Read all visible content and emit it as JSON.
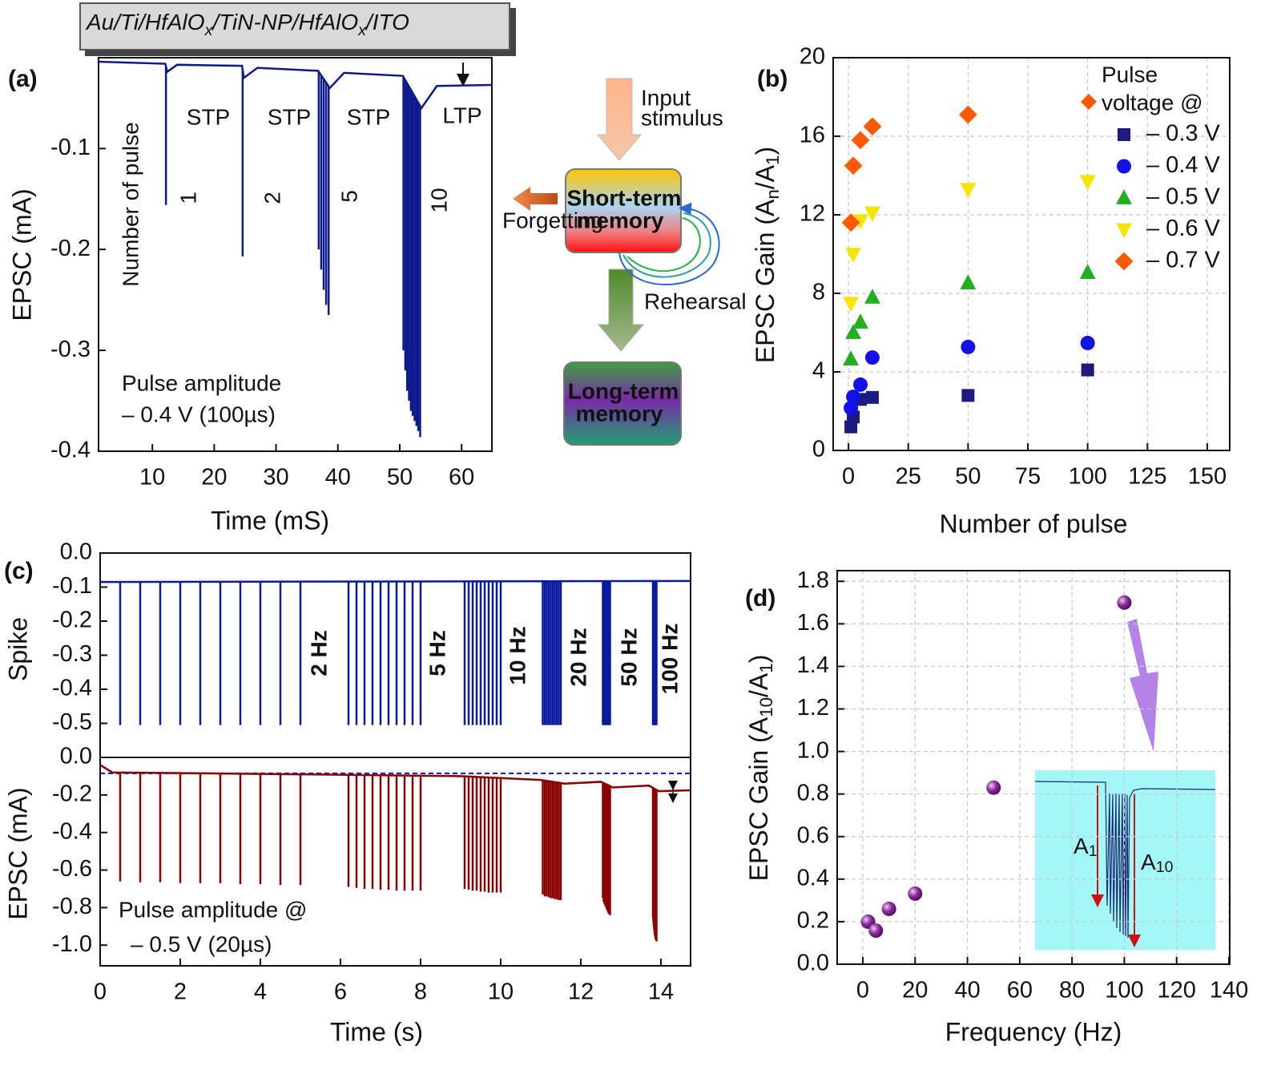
{
  "header": {
    "parts": [
      {
        "text": "Au/Ti/HfAlO"
      },
      {
        "text": "x",
        "sub": true
      },
      {
        "text": "/TiN-NP/HfAlO"
      },
      {
        "text": "x",
        "sub": true
      },
      {
        "text": "/ITO"
      }
    ]
  },
  "diagram": {
    "input": [
      "Input",
      "stimulus"
    ],
    "stm": [
      "Short-term",
      "memory"
    ],
    "ltm": [
      "Long-term",
      "memory"
    ],
    "forgetting": "Forgetting",
    "rehearsal": "Rehearsal"
  },
  "chart_data": [
    {
      "type": "spike_train",
      "panel": "(a)",
      "xlabel": "Time (mS)",
      "ylabel": "EPSC (mA)",
      "color": "#0d1a8c",
      "xlim": [
        1.3,
        64.9
      ],
      "ylim": [
        -0.4,
        -0.01
      ],
      "xticks": [
        10,
        20,
        30,
        40,
        50,
        60
      ],
      "yticks": [
        -0.1,
        -0.2,
        -0.3,
        -0.4
      ],
      "grid": false,
      "x": [
        12.2,
        24.6,
        36.9,
        37.3,
        37.7,
        38.1,
        38.5,
        50.6,
        50.9,
        51.2,
        51.5,
        51.8,
        52.1,
        52.4,
        52.7,
        53.0,
        53.3
      ],
      "values": [
        -0.156,
        -0.207,
        -0.2,
        -0.22,
        -0.24,
        -0.255,
        -0.265,
        -0.3,
        -0.32,
        -0.34,
        -0.35,
        -0.36,
        -0.365,
        -0.37,
        -0.375,
        -0.38,
        -0.386
      ],
      "baseline": {
        "x": [
          1.3,
          12.1,
          12.4,
          14,
          24.5,
          24.8,
          27,
          36.8,
          38.7,
          41,
          50.5,
          53.5,
          56,
          64.9
        ],
        "values": [
          -0.014,
          -0.016,
          -0.024,
          -0.017,
          -0.018,
          -0.03,
          -0.02,
          -0.023,
          -0.04,
          -0.025,
          -0.028,
          -0.06,
          -0.038,
          -0.037
        ]
      },
      "annotations": [
        "Number of pulse",
        "STP",
        "STP",
        "STP",
        "LTP",
        "1",
        "2",
        "5",
        "10",
        "Pulse amplitude",
        "– 0.4 V (100µs)"
      ]
    },
    {
      "type": "scatter",
      "panel": "(b)",
      "xlabel": "Number of pulse",
      "ylabel": [
        {
          "text": "EPSC Gain (A"
        },
        {
          "text": "n",
          "sub": true
        },
        {
          "text": "/A"
        },
        {
          "text": "1",
          "sub": true
        },
        {
          "text": ")"
        }
      ],
      "xlim": [
        -6.4,
        159.4
      ],
      "ylim": [
        0,
        20
      ],
      "xticks": [
        0,
        25,
        50,
        75,
        100,
        125,
        150
      ],
      "yticks": [
        0,
        4,
        8,
        12,
        16,
        20
      ],
      "grid": true,
      "legend": "upper right",
      "legend_title": [
        "Pulse",
        "voltage @"
      ],
      "series": [
        {
          "name": "– 0.3 V",
          "color": "#1c1a7e",
          "marker": "square",
          "x": [
            1,
            2,
            5,
            10,
            50,
            100
          ],
          "values": [
            1.2,
            1.7,
            2.6,
            2.7,
            2.8,
            4.1
          ]
        },
        {
          "name": "– 0.4 V",
          "color": "#1212e6",
          "marker": "circle",
          "x": [
            1,
            2,
            5,
            10,
            50,
            100
          ],
          "values": [
            2.16,
            2.73,
            3.35,
            4.73,
            5.27,
            5.47
          ]
        },
        {
          "name": "– 0.5 V",
          "color": "#22b022",
          "marker": "triangle",
          "x": [
            1,
            2,
            5,
            10,
            50,
            100
          ],
          "values": [
            4.65,
            6.0,
            6.53,
            7.8,
            8.53,
            9.06
          ]
        },
        {
          "name": "– 0.6 V",
          "color": "#f7e400",
          "marker": "triangle-down",
          "x": [
            1,
            2,
            5,
            10,
            50,
            100
          ],
          "values": [
            7.5,
            10.0,
            11.7,
            12.1,
            13.3,
            13.7
          ]
        },
        {
          "name": "– 0.7 V",
          "color": "#ff5a00",
          "marker": "diamond",
          "x": [
            1,
            2,
            5,
            10,
            50
          ],
          "values": [
            11.6,
            14.5,
            15.8,
            16.5,
            17.1
          ]
        }
      ]
    },
    {
      "type": "spike_train",
      "panel": "(c)",
      "ylabel": "Spike",
      "color": "#0a1aa0",
      "xlim": [
        0,
        14.74
      ],
      "ylim": [
        -0.6,
        0
      ],
      "yticks": [
        {
          "value": 0,
          "label": "0.0"
        },
        -0.1,
        -0.2,
        -0.3,
        -0.4,
        -0.5
      ],
      "grid": false,
      "x": [
        0.5,
        1,
        1.5,
        2,
        2.5,
        3,
        3.5,
        4,
        4.5,
        5,
        6.2,
        6.4,
        6.6,
        6.8,
        7.0,
        7.2,
        7.4,
        7.6,
        7.8,
        8.0,
        9.1,
        9.2,
        9.3,
        9.4,
        9.5,
        9.6,
        9.7,
        9.8,
        9.9,
        10.0,
        11.05,
        11.1,
        11.15,
        11.2,
        11.25,
        11.3,
        11.35,
        11.4,
        11.45,
        11.5,
        12.55,
        12.57,
        12.59,
        12.61,
        12.63,
        12.65,
        12.67,
        12.69,
        12.71,
        12.73,
        13.8,
        13.81,
        13.82,
        13.83,
        13.84,
        13.85,
        13.86,
        13.87,
        13.88,
        13.89
      ],
      "values": [
        -0.505,
        -0.505,
        -0.505,
        -0.505,
        -0.505,
        -0.505,
        -0.505,
        -0.505,
        -0.505,
        -0.505,
        -0.505,
        -0.505,
        -0.505,
        -0.505,
        -0.505,
        -0.505,
        -0.505,
        -0.505,
        -0.505,
        -0.505,
        -0.505,
        -0.505,
        -0.505,
        -0.505,
        -0.505,
        -0.505,
        -0.505,
        -0.505,
        -0.505,
        -0.505,
        -0.505,
        -0.505,
        -0.505,
        -0.505,
        -0.505,
        -0.505,
        -0.505,
        -0.505,
        -0.505,
        -0.505,
        -0.505,
        -0.505,
        -0.505,
        -0.505,
        -0.505,
        -0.505,
        -0.505,
        -0.505,
        -0.505,
        -0.505,
        -0.505,
        -0.505,
        -0.505,
        -0.505,
        -0.505,
        -0.505,
        -0.505,
        -0.505,
        -0.505,
        -0.505
      ],
      "baseline": {
        "x": [
          0,
          14.74
        ],
        "values": [
          -0.085,
          -0.082
        ]
      },
      "annotations": [
        "2 Hz",
        "5 Hz",
        "10 Hz",
        "20 Hz",
        "50 Hz",
        "100 Hz"
      ]
    },
    {
      "type": "spike_train",
      "xlabel": "Time (s)",
      "ylabel": "EPSC (mA)",
      "color": "#8b0000",
      "xlim": [
        0,
        14.74
      ],
      "ylim": [
        -1.11,
        0
      ],
      "xticks": [
        0,
        2,
        4,
        6,
        8,
        10,
        12,
        14
      ],
      "yticks": [
        {
          "value": 0,
          "label": "0.0"
        },
        -0.2,
        -0.4,
        -0.6,
        -0.8,
        {
          "value": -1,
          "label": "-1.0"
        }
      ],
      "grid": false,
      "ref_line": -0.085,
      "ref_color": "#1010d0",
      "x": [
        0.5,
        1,
        1.5,
        2,
        2.5,
        3,
        3.5,
        4,
        4.5,
        5,
        6.2,
        6.4,
        6.6,
        6.8,
        7.0,
        7.2,
        7.4,
        7.6,
        7.8,
        8.0,
        9.1,
        9.2,
        9.3,
        9.4,
        9.5,
        9.6,
        9.7,
        9.8,
        9.9,
        10.0,
        11.05,
        11.1,
        11.15,
        11.2,
        11.25,
        11.3,
        11.35,
        11.4,
        11.45,
        11.5,
        12.55,
        12.57,
        12.59,
        12.61,
        12.63,
        12.65,
        12.67,
        12.69,
        12.71,
        12.73,
        13.8,
        13.81,
        13.82,
        13.83,
        13.84,
        13.85,
        13.86,
        13.87,
        13.88,
        13.89
      ],
      "values": [
        -0.66,
        -0.665,
        -0.665,
        -0.67,
        -0.67,
        -0.67,
        -0.675,
        -0.675,
        -0.68,
        -0.68,
        -0.69,
        -0.695,
        -0.7,
        -0.7,
        -0.705,
        -0.705,
        -0.71,
        -0.71,
        -0.71,
        -0.71,
        -0.7,
        -0.705,
        -0.71,
        -0.71,
        -0.715,
        -0.715,
        -0.72,
        -0.72,
        -0.72,
        -0.72,
        -0.73,
        -0.74,
        -0.74,
        -0.745,
        -0.75,
        -0.75,
        -0.755,
        -0.755,
        -0.76,
        -0.76,
        -0.75,
        -0.77,
        -0.78,
        -0.79,
        -0.8,
        -0.81,
        -0.82,
        -0.83,
        -0.835,
        -0.84,
        -0.85,
        -0.88,
        -0.9,
        -0.92,
        -0.94,
        -0.95,
        -0.96,
        -0.97,
        -0.975,
        -0.98
      ],
      "baseline": {
        "x": [
          0,
          0.3,
          5,
          9,
          11,
          11.6,
          12.5,
          12.8,
          13.7,
          13.95,
          14.74
        ],
        "values": [
          -0.04,
          -0.08,
          -0.09,
          -0.1,
          -0.12,
          -0.14,
          -0.13,
          -0.16,
          -0.15,
          -0.18,
          -0.175
        ]
      },
      "annotations": [
        "Pulse amplitude @",
        "– 0.5 V (20µs)"
      ]
    },
    {
      "type": "scatter",
      "panel": "(d)",
      "xlabel": "Frequency (Hz)",
      "ylabel": [
        {
          "text": "EPSC Gain (A"
        },
        {
          "text": "10",
          "sub": true
        },
        {
          "text": "/A"
        },
        {
          "text": "1",
          "sub": true
        },
        {
          "text": ")"
        }
      ],
      "xlim": [
        -9.8,
        140.3
      ],
      "ylim": [
        0,
        1.85
      ],
      "xticks": [
        0,
        20,
        40,
        60,
        80,
        100,
        120,
        140
      ],
      "yticks": [
        {
          "value": 0,
          "label": "0.0"
        },
        0.2,
        0.4,
        0.6,
        0.8,
        {
          "value": 1,
          "label": "1.0"
        },
        1.2,
        1.4,
        1.6,
        1.8
      ],
      "grid": true,
      "series": [
        {
          "color": "#7a1a8a",
          "marker": "sphere",
          "x": [
            2,
            5,
            10,
            20,
            50,
            100
          ],
          "values": [
            0.2,
            0.158,
            0.26,
            0.332,
            0.83,
            1.7
          ]
        }
      ],
      "inset_labels": [
        [
          {
            "text": "A"
          },
          {
            "text": "1",
            "sub": true
          }
        ],
        [
          {
            "text": "A"
          },
          {
            "text": "10",
            "sub": true
          }
        ]
      ]
    }
  ]
}
